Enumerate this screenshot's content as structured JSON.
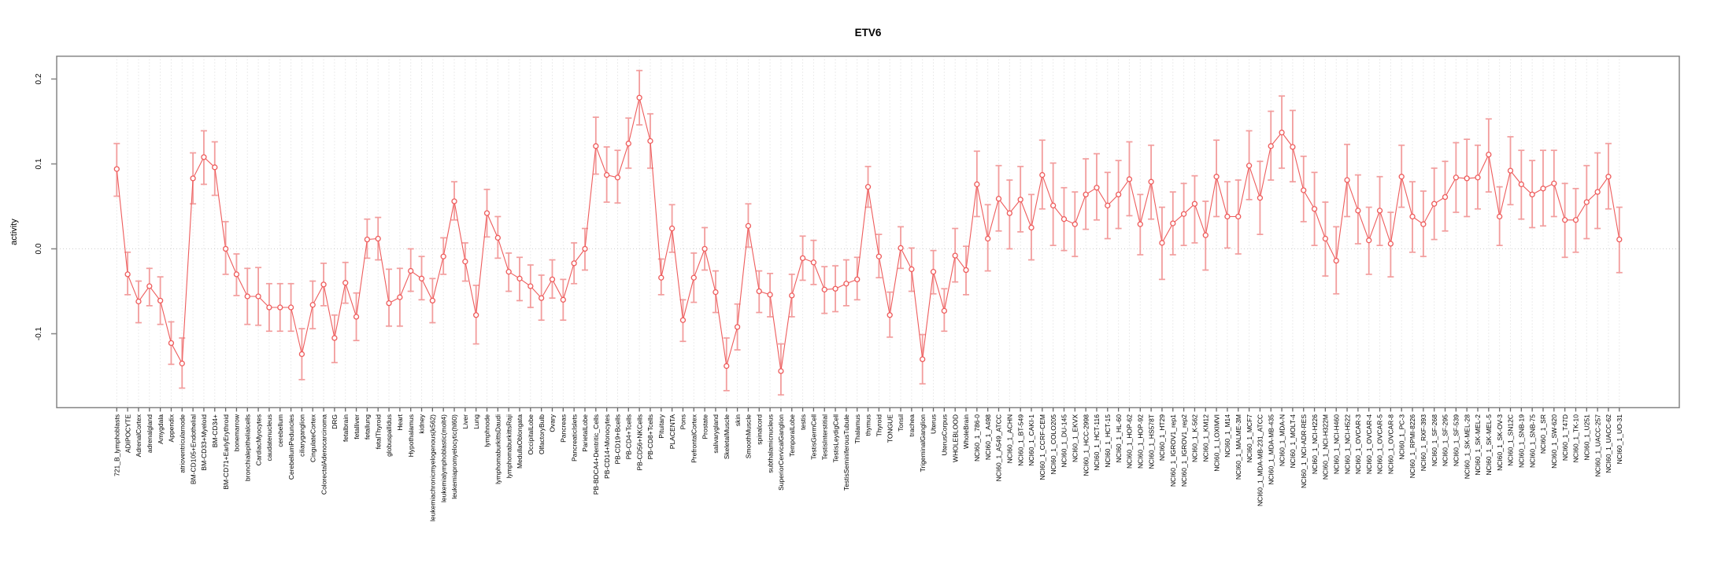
{
  "chart_data": {
    "type": "line",
    "title": "ETV6",
    "xlabel": "",
    "ylabel": "activity",
    "ylim": [
      -0.19,
      0.227
    ],
    "yticks": [
      0.2,
      0.1,
      0.0,
      -0.1
    ],
    "ytick_labels": [
      "0.2",
      "0.1",
      "0.0",
      "-0.1"
    ],
    "grid": "vertical-dotted-per-category-plus-zero-line",
    "legend": "none",
    "marker": "open-circle",
    "error_bars": true,
    "colors": {
      "line": "#ee5c5c",
      "marker": "#ee5c5c",
      "error_bar": "#f29d9d",
      "gridline": "#d9d9d9",
      "zero_line": "#cfcfcf",
      "frame": "#858585",
      "tick": "#666666",
      "text": "#000000"
    },
    "categories": [
      "721_B_lymphoblasts",
      "ADIPOCYTE",
      "AdrenalCortex",
      "adrenalgland",
      "Amygdala",
      "Appendix",
      "atrioventricularnode",
      "BM-CD105+Endothelial",
      "BM-CD33+Myeloid",
      "BM-CD34+",
      "BM-CD71+EarlyErythroid",
      "bonemarrow",
      "bronchialepithelialcells",
      "CardiacMyocytes",
      "caudatenucleus",
      "cerebellum",
      "CerebellumPeduncles",
      "ciliaryganglion",
      "CingulateCortex",
      "ColorectalAdenocarcinoma",
      "DRG",
      "fetalbrain",
      "fetalliver",
      "fetallung",
      "fetalThyroid",
      "globuspallidus",
      "Heart",
      "Hypothalamus",
      "kidney",
      "leukemiachronicmyelogenous(k562)",
      "leukemialymphoblastic(molt4)",
      "leukemiapromyelocytic(hl60)",
      "Liver",
      "Lung",
      "lymphnode",
      "lymphomaburkittsDaudi",
      "lymphomaburkittsRaji",
      "MedullaOblongata",
      "OccipitalLobe",
      "OlfactoryBulb",
      "Ovary",
      "Pancreas",
      "PancreaticIslets",
      "ParietalLobe",
      "PB-BDCA4+Dentritic_Cells",
      "PB-CD14+Monocytes",
      "PB-CD19+Bcells",
      "PB-CD4+Tcells",
      "PB-CD56+NKCells",
      "PB-CD8+Tcells",
      "Pituitary",
      "PLACENTA",
      "Pons",
      "PrefrontalCortex",
      "Prostate",
      "salivarygland",
      "SkeletalMuscle",
      "skin",
      "SmoothMuscle",
      "spinalcord",
      "subthalamicnucleus",
      "SuperiorCervicalGanglion",
      "TemporalLobe",
      "testis",
      "TestisGermCell",
      "TestisInterstitial",
      "TestisLeydigCell",
      "TestisSeminiferousTubule",
      "Thalamus",
      "thymus",
      "Thyroid",
      "TONGUE",
      "Tonsil",
      "trachea",
      "TrigeminalGanglion",
      "Uterus",
      "UterusCorpus",
      "WHOLEBLOOD",
      "WholeBrain",
      "NCI60_1_786-0",
      "NCI60_1_A498",
      "NCI60_1_A549_ATCC",
      "NCI60_1_ACHN",
      "NCI60_1_BT-549",
      "NCI60_1_CAKI-1",
      "NCI60_1_CCRF-CEM",
      "NCI60_1_COLO205",
      "NCI60_1_DU-145",
      "NCI60_1_EKVX",
      "NCI60_1_HCC-2998",
      "NCI60_1_HCT-116",
      "NCI60_1_HCT-15",
      "NCI60_1_HL-60",
      "NCI60_1_HOP-62",
      "NCI60_1_HOP-92",
      "NCI60_1_HS578T",
      "NCI60_1_HT29",
      "NCI60_1_IGROV1_rep1",
      "NCI60_1_IGROV1_rep2",
      "NCI60_1_K-562",
      "NCI60_1_KM12",
      "NCI60_1_LOXIMVI",
      "NCI60_1_M14",
      "NCI60_1_MALME-3M",
      "NCI60_1_MCF7",
      "NCI60_1_MDA-MB-231_ATCC",
      "NCI60_1_MDA-MB-435",
      "NCI60_1_MDA-N",
      "NCI60_1_MOLT-4",
      "NCI60_1_NCI-ADR-RES",
      "NCI60_1_NCI-H226",
      "NCI60_1_NCI-H322M",
      "NCI60_1_NCI-H460",
      "NCI60_1_NCI-H522",
      "NCI60_1_OVCAR-3",
      "NCI60_1_OVCAR-4",
      "NCI60_1_OVCAR-5",
      "NCI60_1_OVCAR-8",
      "NCI60_1_PC-3",
      "NCI60_1_RPMI-8226",
      "NCI60_1_RXF-393",
      "NCI60_1_SF-268",
      "NCI60_1_SF-295",
      "NCI60_1_SF-539",
      "NCI60_1_SK-MEL-28",
      "NCI60_1_SK-MEL-2",
      "NCI60_1_SK-MEL-5",
      "NCI60_1_SK-OV-3",
      "NCI60_1_SN12C",
      "NCI60_1_SNB-19",
      "NCI60_1_SNB-75",
      "NCI60_1_SR",
      "NCI60_1_SW-620",
      "NCI60_1_T47D",
      "NCI60_1_TK-10",
      "NCI60_1_U251",
      "NCI60_1_UACC-257",
      "NCI60_1_UACC-62",
      "NCI60_1_UO-31"
    ],
    "values": [
      0.094,
      -0.03,
      -0.062,
      -0.044,
      -0.061,
      -0.111,
      -0.135,
      0.083,
      0.108,
      0.096,
      0.0,
      -0.03,
      -0.056,
      -0.056,
      -0.069,
      -0.069,
      -0.069,
      -0.124,
      -0.066,
      -0.042,
      -0.105,
      -0.04,
      -0.08,
      0.011,
      0.012,
      -0.064,
      -0.057,
      -0.026,
      -0.035,
      -0.061,
      -0.009,
      0.056,
      -0.015,
      -0.078,
      0.042,
      0.013,
      -0.027,
      -0.035,
      -0.044,
      -0.058,
      -0.036,
      -0.06,
      -0.017,
      0.0,
      0.121,
      0.087,
      0.084,
      0.124,
      0.178,
      0.127,
      -0.034,
      0.024,
      -0.084,
      -0.034,
      0.0,
      -0.051,
      -0.138,
      -0.092,
      0.027,
      -0.05,
      -0.054,
      -0.144,
      -0.055,
      -0.011,
      -0.016,
      -0.048,
      -0.047,
      -0.041,
      -0.036,
      0.073,
      -0.009,
      -0.078,
      0.001,
      -0.024,
      -0.13,
      -0.027,
      -0.073,
      -0.008,
      -0.025,
      0.076,
      0.012,
      0.059,
      0.042,
      0.058,
      0.025,
      0.087,
      0.051,
      0.035,
      0.029,
      0.064,
      0.072,
      0.051,
      0.064,
      0.082,
      0.029,
      0.079,
      0.007,
      0.03,
      0.041,
      0.053,
      0.016,
      0.085,
      0.038,
      0.038,
      0.098,
      0.06,
      0.121,
      0.137,
      0.12,
      0.069,
      0.047,
      0.012,
      -0.014,
      0.081,
      0.045,
      0.01,
      0.045,
      0.006,
      0.085,
      0.038,
      0.029,
      0.053,
      0.061,
      0.084,
      0.083,
      0.084,
      0.111,
      0.038,
      0.092,
      0.076,
      0.064,
      0.071,
      0.077,
      0.034,
      0.034,
      0.055,
      0.067,
      0.085,
      0.011
    ],
    "ci_low": [
      0.062,
      -0.054,
      -0.087,
      -0.067,
      -0.089,
      -0.136,
      -0.164,
      0.053,
      0.076,
      0.063,
      -0.03,
      -0.055,
      -0.089,
      -0.09,
      -0.097,
      -0.097,
      -0.097,
      -0.154,
      -0.094,
      -0.067,
      -0.134,
      -0.064,
      -0.108,
      -0.011,
      -0.013,
      -0.091,
      -0.091,
      -0.05,
      -0.06,
      -0.087,
      -0.03,
      0.034,
      -0.038,
      -0.112,
      0.014,
      -0.011,
      -0.05,
      -0.061,
      -0.069,
      -0.084,
      -0.058,
      -0.084,
      -0.041,
      -0.025,
      0.088,
      0.055,
      0.054,
      0.095,
      0.146,
      0.095,
      -0.054,
      -0.004,
      -0.109,
      -0.063,
      -0.025,
      -0.075,
      -0.167,
      -0.119,
      0.002,
      -0.075,
      -0.08,
      -0.172,
      -0.08,
      -0.037,
      -0.042,
      -0.076,
      -0.074,
      -0.067,
      -0.06,
      0.049,
      -0.034,
      -0.104,
      -0.023,
      -0.05,
      -0.159,
      -0.053,
      -0.097,
      -0.039,
      -0.054,
      0.038,
      -0.026,
      0.021,
      0.0,
      0.02,
      -0.013,
      0.047,
      0.004,
      -0.002,
      -0.009,
      0.023,
      0.034,
      0.012,
      0.024,
      0.039,
      -0.007,
      0.035,
      -0.036,
      -0.007,
      0.004,
      0.007,
      -0.025,
      0.038,
      0.001,
      -0.006,
      0.058,
      0.017,
      0.081,
      0.095,
      0.079,
      0.032,
      0.004,
      -0.032,
      -0.053,
      0.038,
      0.006,
      -0.03,
      0.004,
      -0.033,
      0.049,
      -0.004,
      -0.009,
      0.011,
      0.021,
      0.043,
      0.038,
      0.047,
      0.067,
      0.004,
      0.052,
      0.035,
      0.025,
      0.027,
      0.038,
      -0.01,
      -0.004,
      0.012,
      0.024,
      0.047,
      -0.028
    ],
    "ci_high": [
      0.124,
      -0.004,
      -0.038,
      -0.023,
      -0.033,
      -0.086,
      -0.105,
      0.113,
      0.139,
      0.126,
      0.032,
      -0.006,
      -0.023,
      -0.022,
      -0.041,
      -0.041,
      -0.041,
      -0.094,
      -0.038,
      -0.017,
      -0.078,
      -0.016,
      -0.052,
      0.035,
      0.037,
      -0.024,
      -0.023,
      0.0,
      -0.009,
      -0.035,
      0.013,
      0.079,
      0.007,
      -0.043,
      0.07,
      0.038,
      -0.005,
      -0.01,
      -0.019,
      -0.031,
      -0.013,
      -0.036,
      0.007,
      0.024,
      0.155,
      0.12,
      0.116,
      0.154,
      0.21,
      0.159,
      -0.012,
      0.052,
      -0.06,
      -0.005,
      0.025,
      -0.026,
      -0.105,
      -0.065,
      0.053,
      -0.026,
      -0.029,
      -0.112,
      -0.03,
      0.015,
      0.01,
      -0.021,
      -0.02,
      -0.013,
      -0.01,
      0.097,
      0.017,
      -0.051,
      0.026,
      0.001,
      -0.101,
      -0.002,
      -0.047,
      0.024,
      0.003,
      0.115,
      0.052,
      0.098,
      0.081,
      0.097,
      0.064,
      0.128,
      0.101,
      0.072,
      0.067,
      0.106,
      0.112,
      0.09,
      0.104,
      0.126,
      0.064,
      0.122,
      0.049,
      0.067,
      0.077,
      0.086,
      0.056,
      0.128,
      0.079,
      0.081,
      0.139,
      0.103,
      0.162,
      0.18,
      0.163,
      0.109,
      0.09,
      0.055,
      0.026,
      0.123,
      0.087,
      0.049,
      0.085,
      0.043,
      0.122,
      0.079,
      0.068,
      0.095,
      0.103,
      0.125,
      0.129,
      0.122,
      0.153,
      0.073,
      0.132,
      0.116,
      0.104,
      0.116,
      0.116,
      0.077,
      0.071,
      0.098,
      0.113,
      0.124,
      0.049
    ]
  }
}
